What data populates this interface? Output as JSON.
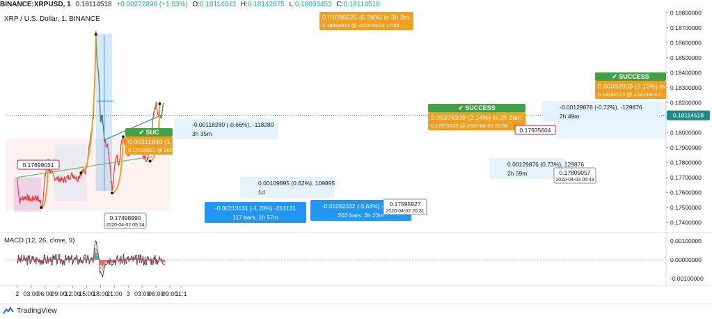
{
  "header": {
    "symbol": "BINANCE:XRPUSD, 1",
    "last": "0.18114518",
    "change": "+0.00272898 (+1.53%)",
    "o_label": "O:",
    "o": "0.18114043",
    "h_label": "H:",
    "h": "0.18142875",
    "l_label": "L:",
    "l": "0.18093453",
    "c_label": "C:",
    "c": "0.18114518",
    "subtitle": "XRP / U.S. Dollar, 1, BINANCE"
  },
  "macd_label": "MACD (12, 26, close, 9)",
  "brand": "TradingView",
  "colors": {
    "up": "#26a69a",
    "down": "#ef5350",
    "price": "#e53935",
    "teal": "#1e8a85",
    "orange": "#f0a020",
    "green": "#43a047",
    "blue": "#2196f3",
    "pink": "#c2185b"
  },
  "chart_data": [
    {
      "type": "line",
      "title": "XRP / U.S. Dollar, 1, BINANCE",
      "x_ticks": [
        "2",
        "03:00",
        "06:00",
        "09:00",
        "12:00",
        "15:00",
        "18:00",
        "21:00",
        "3",
        "03:00",
        "06:00",
        "09:00",
        "11:1"
      ],
      "y_ticks": [
        "0.18800000",
        "0.18700000",
        "0.18600000",
        "0.18500000",
        "0.18400000",
        "0.18300000",
        "0.18200000",
        "0.18100000",
        "0.18000000",
        "0.17900000",
        "0.17800000",
        "0.17700000",
        "0.17600000",
        "0.17500000",
        "0.17400000"
      ],
      "ylim": [
        0.1735,
        0.1882
      ],
      "last_price_label": "0.18114518",
      "series": [
        {
          "x": [
            0,
            0.5,
            1,
            2,
            3,
            4,
            5,
            5.4,
            5.7,
            6,
            6.5,
            7,
            8,
            9,
            10,
            11,
            12,
            13,
            14,
            14.8,
            15.5,
            16,
            16.5,
            17,
            17.3,
            17.6,
            18,
            18.4,
            18.8,
            19.2,
            19.6,
            20,
            20.5,
            21,
            21.5,
            22,
            22.5,
            23,
            23.5,
            24,
            25,
            26,
            26.6,
            27,
            27.5,
            28,
            28.5,
            29,
            29.5,
            30,
            30.8,
            31.2,
            31.7
          ],
          "values": [
            0.177,
            0.1754,
            0.1756,
            0.1757,
            0.1755,
            0.1757,
            0.1754,
            0.175,
            0.176,
            0.177,
            0.178,
            0.1775,
            0.177,
            0.1769,
            0.1768,
            0.177,
            0.1772,
            0.1769,
            0.1774,
            0.1774,
            0.179,
            0.18,
            0.181,
            0.1866,
            0.1844,
            0.1838,
            0.1808,
            0.1811,
            0.1795,
            0.1792,
            0.179,
            0.1781,
            0.1761,
            0.1776,
            0.1785,
            0.1777,
            0.1795,
            0.1797,
            0.1788,
            0.1786,
            0.179,
            0.1793,
            0.1788,
            0.1786,
            0.1783,
            0.1781,
            0.1788,
            0.1796,
            0.1812,
            0.1819,
            0.1809,
            0.1812,
            0.1823
          ]
        }
      ],
      "annotations": [
        {
          "type": "price_label",
          "text": "0.17699031"
        },
        {
          "type": "price_label",
          "text": "0.17498990",
          "date": "2020-04-02 05:24"
        },
        {
          "type": "projection",
          "main": "0.00311840 (1.",
          "sub": "0.17810831 @ 202",
          "badge": "SUC"
        },
        {
          "type": "range",
          "line1": "-0.00118280 (-0.66%), -118280",
          "line2": "3h 35m"
        },
        {
          "type": "range",
          "line1": "0.00109895 (0.62%), 109895",
          "line2": "1d"
        },
        {
          "type": "range",
          "line1": "-0.00213131 (-1.20%) -213131",
          "line2": "117 bars, 1h 57m"
        },
        {
          "type": "projection",
          "main": "0.01095625 (6.24%) in 3h 3m",
          "sub": "0.18654919 @ 2020-04-02  17:03"
        },
        {
          "type": "range",
          "line1": "-0.01052332 (-5.64%) -10523",
          "line2": "203 bars, 3h 23m"
        },
        {
          "type": "price_label",
          "text": "0.17595927",
          "date": "2020-04-02 20:31"
        },
        {
          "type": "projection",
          "main": "0.00376309 (2.14%) in 2h 25m",
          "sub": "0.17972235 @ 2020-04-02  22:56",
          "badge": "SUCCESS"
        },
        {
          "type": "price_label",
          "text": "0.17935604"
        },
        {
          "type": "range",
          "line1": "-0.00129876 (-0.72%), -129876",
          "line2": "2h 49m"
        },
        {
          "type": "range",
          "line1": "0.00129876 (0.73%), 129876",
          "line2": "2h 59m"
        },
        {
          "type": "price_label",
          "text": "0.17809057",
          "date": "2020-04-03 05:43"
        },
        {
          "type": "projection",
          "main": "0.00382969 (2.15%) in",
          "sub": "0.18192026 @ 2020-04-03",
          "badge": "SUCCESS"
        }
      ]
    },
    {
      "type": "line",
      "title": "MACD (12, 26, close, 9)",
      "y_ticks": [
        "0.00100000",
        "0.00000000",
        "-0.00100000"
      ],
      "ylim": [
        -0.0013,
        0.0013
      ]
    }
  ]
}
